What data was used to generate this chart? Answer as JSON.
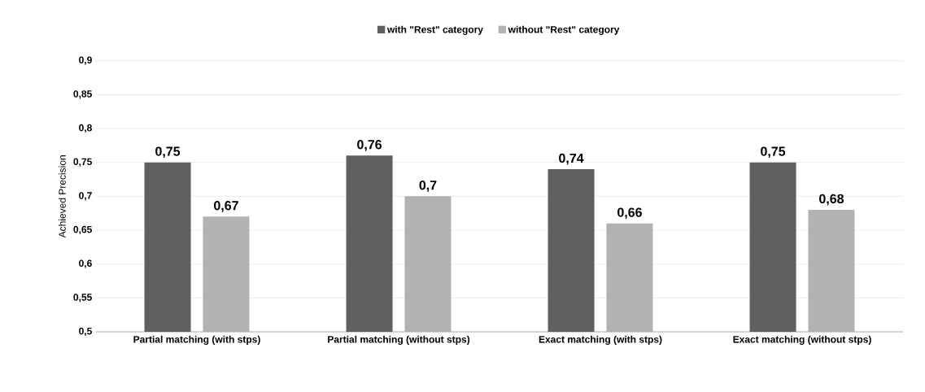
{
  "chart_data": {
    "type": "bar",
    "ylabel": "Achieved Precision",
    "categories": [
      "Partial matching (with stps)",
      "Partial matching (without stps)",
      "Exact matching (with stps)",
      "Exact matching (without stps)"
    ],
    "series": [
      {
        "name": "with \"Rest\" category",
        "color": "#5f5f5f",
        "values": [
          0.75,
          0.76,
          0.74,
          0.75
        ],
        "value_labels": [
          "0,75",
          "0,76",
          "0,74",
          "0,75"
        ]
      },
      {
        "name": "without \"Rest\" category",
        "color": "#b2b2b2",
        "values": [
          0.67,
          0.7,
          0.66,
          0.68
        ],
        "value_labels": [
          "0,67",
          "0,7",
          "0,66",
          "0,68"
        ]
      }
    ],
    "ylim": [
      0.5,
      0.9
    ],
    "yticks": [
      {
        "value": 0.5,
        "label": "0,5"
      },
      {
        "value": 0.55,
        "label": "0,55"
      },
      {
        "value": 0.6,
        "label": "0,6"
      },
      {
        "value": 0.65,
        "label": "0,65"
      },
      {
        "value": 0.7,
        "label": "0,7"
      },
      {
        "value": 0.75,
        "label": "0,75"
      },
      {
        "value": 0.8,
        "label": "0,8"
      },
      {
        "value": 0.85,
        "label": "0,85"
      },
      {
        "value": 0.9,
        "label": "0,9"
      }
    ],
    "grid": "y",
    "legend": "top"
  }
}
